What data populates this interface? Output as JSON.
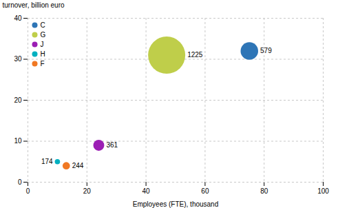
{
  "chart_data": {
    "type": "scatter",
    "series": [
      {
        "name": "C",
        "color": "#2E75B6",
        "x": [
          75
        ],
        "y": [
          32
        ],
        "size": [
          579
        ]
      },
      {
        "name": "G",
        "color": "#BFCE4A",
        "x": [
          47
        ],
        "y": [
          31
        ],
        "size": [
          1225
        ]
      },
      {
        "name": "J",
        "color": "#9B1EB4",
        "x": [
          24
        ],
        "y": [
          9
        ],
        "size": [
          361
        ]
      },
      {
        "name": "H",
        "color": "#00B0C0",
        "x": [
          10
        ],
        "y": [
          5
        ],
        "size": [
          174
        ]
      },
      {
        "name": "F",
        "color": "#F07823",
        "x": [
          13
        ],
        "y": [
          4
        ],
        "size": [
          244
        ]
      }
    ],
    "xlabel": "Employees (FTE), thousand",
    "ylabel": "turnover, billion euro",
    "xlim": [
      0,
      100
    ],
    "ylim": [
      0,
      40
    ],
    "xticks": [
      0,
      20,
      40,
      60,
      80,
      100
    ],
    "yticks": [
      0,
      10,
      20,
      30,
      40
    ],
    "grid": true,
    "legend": "upper left",
    "data_labels": true
  }
}
